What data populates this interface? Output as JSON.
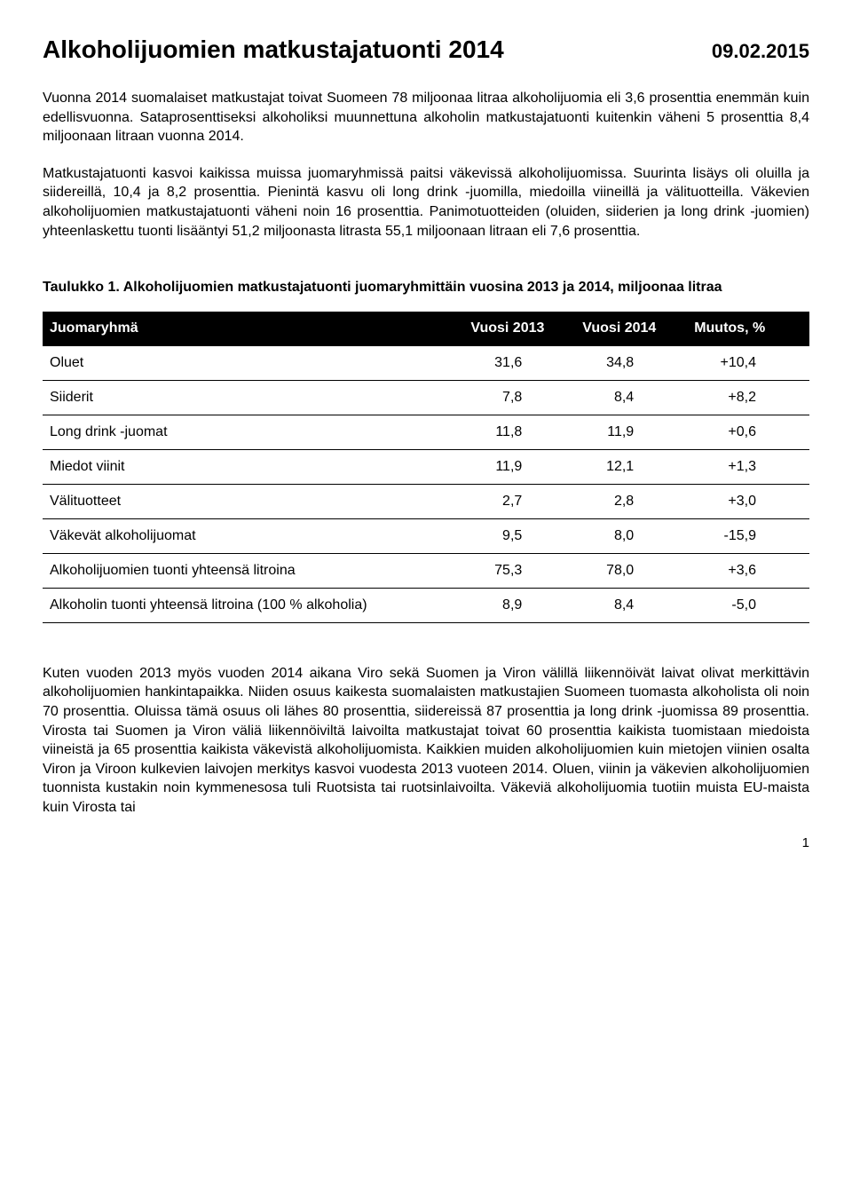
{
  "header": {
    "title": "Alkoholijuomien matkustajatuonti 2014",
    "date": "09.02.2015"
  },
  "paragraphs": {
    "p1": "Vuonna 2014 suomalaiset matkustajat toivat Suomeen 78 miljoonaa litraa alkoholijuomia eli 3,6 prosenttia enemmän kuin edellisvuonna. Sataprosenttiseksi alkoholiksi muunnettuna alkoholin matkustajatuonti kuitenkin väheni 5 prosenttia 8,4 miljoonaan litraan vuonna 2014.",
    "p2": "Matkustajatuonti kasvoi kaikissa muissa juomaryhmissä paitsi väkevissä alkoholijuomissa. Suurinta lisäys oli oluilla ja siidereillä, 10,4 ja 8,2 prosenttia. Pienintä kasvu oli long drink -juomilla, miedoilla viineillä ja välituotteilla. Väkevien alkoholijuomien matkustajatuonti väheni noin 16 prosenttia. Panimotuotteiden (oluiden, siiderien ja long drink -juomien) yhteenlaskettu tuonti lisääntyi 51,2 miljoonasta litrasta 55,1 miljoonaan litraan eli 7,6 prosenttia.",
    "footer": "Kuten vuoden 2013 myös vuoden 2014 aikana Viro sekä Suomen ja Viron välillä liikennöivät laivat olivat merkittävin alkoholijuomien hankintapaikka. Niiden osuus kaikesta suomalaisten matkustajien Suomeen tuomasta alkoholista oli noin 70 prosenttia. Oluissa tämä osuus oli lähes 80 prosenttia, siidereissä 87 prosenttia ja long drink -juomissa 89 prosenttia. Virosta tai Suomen ja Viron väliä liikennöiviltä laivoilta matkustajat toivat 60 prosenttia kaikista tuomistaan miedoista viineistä ja 65 prosenttia kaikista väkevistä alkoholijuomista. Kaikkien muiden alkoholijuomien kuin mietojen viinien osalta Viron ja Viroon kulkevien laivojen merkitys kasvoi vuodesta 2013 vuoteen 2014. Oluen, viinin ja väkevien alkoholijuomien tuonnista kustakin noin kymmenesosa tuli Ruotsista tai ruotsinlaivoilta. Väkeviä alkoholijuomia tuotiin muista EU-maista kuin Virosta tai"
  },
  "table": {
    "caption": "Taulukko 1. Alkoholijuomien matkustajatuonti juomaryhmittäin vuosina 2013 ja 2014, miljoonaa litraa",
    "columns": [
      "Juomaryhmä",
      "Vuosi 2013",
      "Vuosi 2014",
      "Muutos, %"
    ],
    "rows": [
      {
        "label": "Oluet",
        "y2013": "31,6",
        "y2014": "34,8",
        "change": "+10,4"
      },
      {
        "label": "Siiderit",
        "y2013": "7,8",
        "y2014": "8,4",
        "change": "+8,2"
      },
      {
        "label": "Long drink -juomat",
        "y2013": "11,8",
        "y2014": "11,9",
        "change": "+0,6"
      },
      {
        "label": "Miedot viinit",
        "y2013": "11,9",
        "y2014": "12,1",
        "change": "+1,3"
      },
      {
        "label": "Välituotteet",
        "y2013": "2,7",
        "y2014": "2,8",
        "change": "+3,0"
      },
      {
        "label": "Väkevät alkoholijuomat",
        "y2013": "9,5",
        "y2014": "8,0",
        "change": "-15,9"
      },
      {
        "label": "Alkoholijuomien tuonti yhteensä litroina",
        "y2013": "75,3",
        "y2014": "78,0",
        "change": "+3,6"
      },
      {
        "label": "Alkoholin tuonti yhteensä litroina (100 % alkoholia)",
        "y2013": "8,9",
        "y2014": "8,4",
        "change": "-5,0"
      }
    ]
  },
  "page_number": "1"
}
